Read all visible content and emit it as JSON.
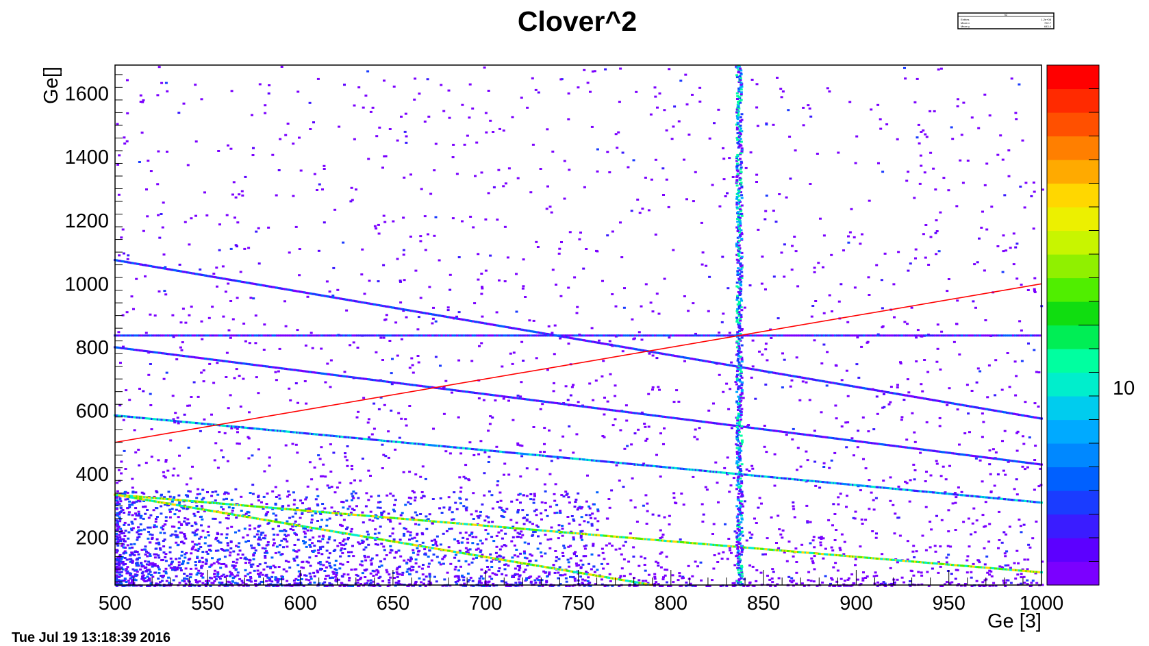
{
  "chart_data": {
    "type": "heatmap",
    "title": "Clover^2",
    "xlabel": "Ge [3]",
    "ylabel": "Ge[]",
    "xlim": [
      500,
      1000
    ],
    "ylim": [
      50,
      1690
    ],
    "x_ticks": [
      "500",
      "550",
      "600",
      "650",
      "700",
      "750",
      "800",
      "850",
      "900",
      "950",
      "1000"
    ],
    "y_ticks": [
      "200",
      "400",
      "600",
      "800",
      "1000",
      "1200",
      "1400",
      "1600"
    ],
    "colorbar": {
      "tick_label": "10",
      "palette": [
        "#7b00ff",
        "#5c00ff",
        "#3a1cff",
        "#1a3cff",
        "#0060ff",
        "#0088ff",
        "#00aaff",
        "#00ccee",
        "#00eecc",
        "#00ffa0",
        "#00ee55",
        "#10dd10",
        "#50ee00",
        "#90f000",
        "#c8f500",
        "#ecf000",
        "#ffd700",
        "#ffaa00",
        "#ff7f00",
        "#ff5000",
        "#ff2a00",
        "#ff0000"
      ]
    },
    "diagonal_bands": [
      {
        "x": [
          500,
          1000
        ],
        "y": [
          1075,
          575
        ]
      },
      {
        "x": [
          500,
          1000
        ],
        "y": [
          800,
          430
        ]
      },
      {
        "x": [
          500,
          1000
        ],
        "y": [
          585,
          310
        ]
      },
      {
        "x": [
          500,
          1000
        ],
        "y": [
          335,
          90
        ]
      },
      {
        "x": [
          500,
          790
        ],
        "y": [
          335,
          50
        ]
      }
    ],
    "vertical_band": {
      "x": 837
    },
    "horizontal_band": {
      "y": 837
    },
    "fit_line": {
      "x": [
        500,
        1000
      ],
      "y": [
        500,
        1000
      ],
      "color": "#ff0000"
    },
    "stats_box": {
      "title": "h2",
      "rows": [
        [
          "Entries",
          "1.2e+08"
        ],
        [
          "Mean x",
          "722.7"
        ],
        [
          "Mean y",
          "643.4"
        ]
      ]
    }
  },
  "timestamp": "Tue Jul 19 13:18:39 2016"
}
